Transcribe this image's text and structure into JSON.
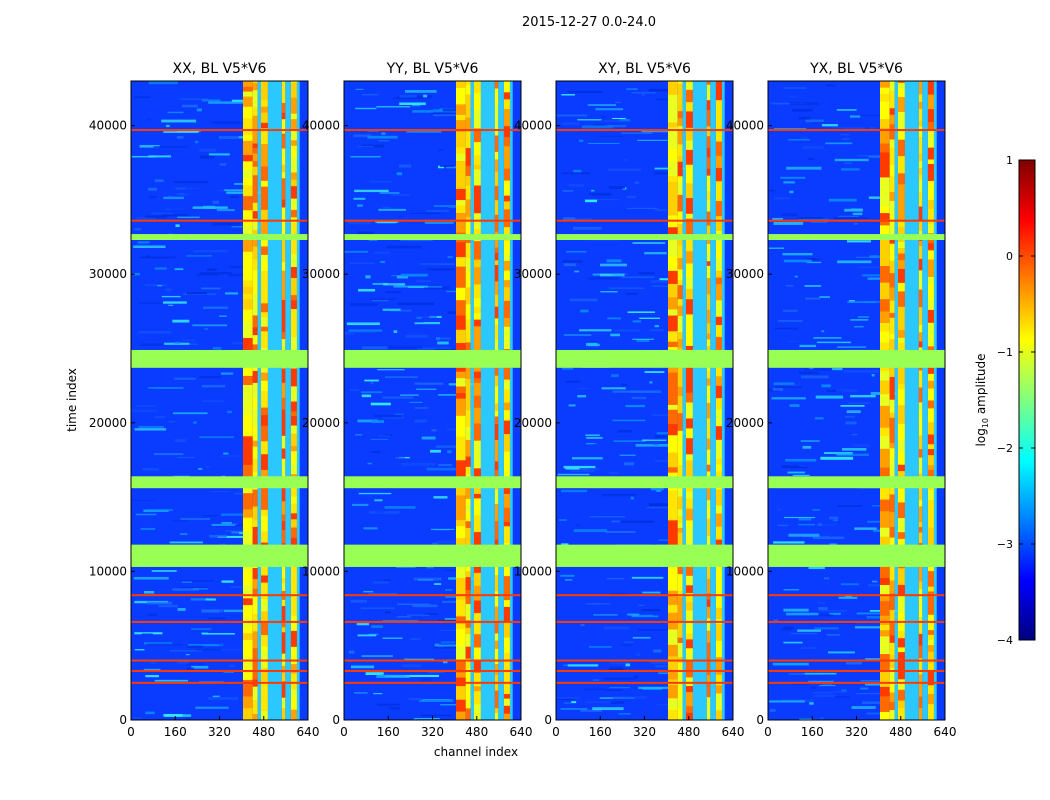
{
  "chart_data": {
    "type": "heatmap",
    "suptitle": "2015-12-27 0.0-24.0",
    "xlabel": "channel index",
    "ylabel": "time index",
    "xlim": [
      0,
      640
    ],
    "ylim": [
      0,
      43000
    ],
    "xticks": [
      0,
      160,
      320,
      480,
      640
    ],
    "xtick_labels": [
      "0",
      "160",
      "320",
      "480",
      "640"
    ],
    "yticks": [
      0,
      10000,
      20000,
      30000,
      40000
    ],
    "ytick_labels": [
      "0",
      "10000",
      "20000",
      "30000",
      "40000"
    ],
    "grid": false,
    "colormap": "jet",
    "colorbar": {
      "label_prefix": "log",
      "label_subscript": "10",
      "label_suffix": " amplitude",
      "range": [
        -4,
        1
      ],
      "ticks": [
        1,
        0,
        -1,
        -2,
        -3,
        -4
      ],
      "tick_labels": [
        "1",
        "0",
        "−1",
        "−2",
        "−3",
        "−4"
      ]
    },
    "panels": [
      {
        "title": "XX, BL V5*V6",
        "pol": "XX"
      },
      {
        "title": "YY, BL V5*V6",
        "pol": "YY"
      },
      {
        "title": "XY, BL V5*V6",
        "pol": "XY"
      },
      {
        "title": "YX, BL V5*V6",
        "pol": "YX"
      }
    ],
    "flagged_time_ranges": [
      [
        10300,
        11800
      ],
      [
        15600,
        16400
      ],
      [
        23700,
        24900
      ],
      [
        32300,
        32700
      ]
    ],
    "rfi_channel_ranges": [
      [
        405,
        440
      ],
      [
        440,
        458
      ],
      [
        470,
        495
      ],
      [
        545,
        558
      ],
      [
        578,
        600
      ]
    ],
    "rfi_lines_time": [
      2500,
      3300,
      4000,
      6600,
      8400,
      33600,
      39700
    ],
    "colors": {
      "flag": "#99ff55",
      "background_low": "#0a3cff",
      "rfi_high": "#ff3a00"
    }
  }
}
